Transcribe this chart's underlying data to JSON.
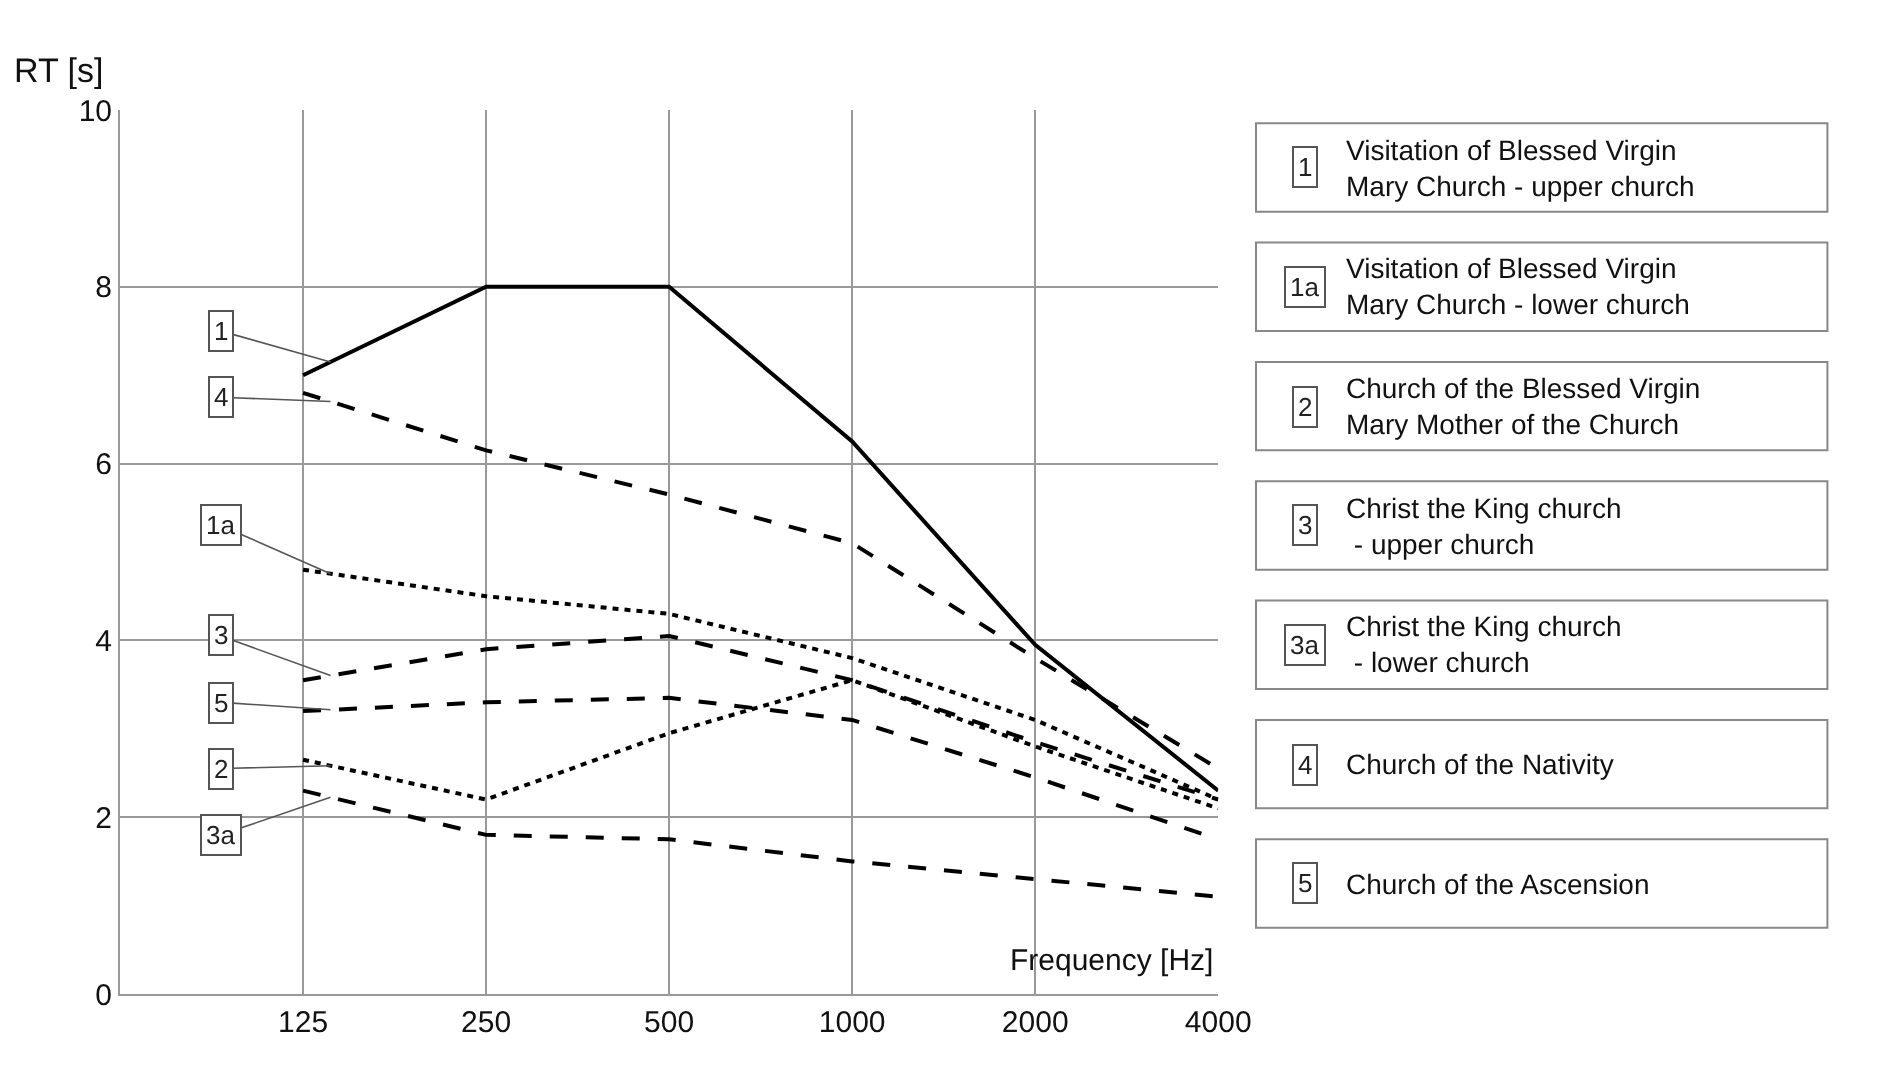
{
  "chart_data": {
    "type": "line",
    "xlabel": "Frequency [Hz]",
    "ylabel": "RT [s]",
    "categories": [
      "125",
      "250",
      "500",
      "1000",
      "2000",
      "4000"
    ],
    "ylim": [
      0,
      10
    ],
    "yticks": [
      0,
      2,
      4,
      6,
      8,
      10
    ],
    "grid": true,
    "legend": false,
    "marker": "none",
    "series": [
      {
        "name": "1",
        "color": "#000000",
        "line_style": "solid",
        "values": [
          7.0,
          8.0,
          8.0,
          6.25,
          3.95,
          2.3
        ]
      },
      {
        "name": "1a",
        "color": "#000000",
        "line_style": "dotted",
        "values": [
          4.8,
          4.5,
          4.3,
          3.8,
          3.1,
          2.2
        ]
      },
      {
        "name": "2",
        "color": "#000000",
        "line_style": "dotted",
        "values": [
          2.65,
          2.2,
          2.95,
          3.55,
          2.8,
          2.1
        ]
      },
      {
        "name": "3",
        "color": "#000000",
        "line_style": "dashed",
        "values": [
          3.55,
          3.9,
          4.05,
          3.55,
          2.85,
          2.2
        ]
      },
      {
        "name": "3a",
        "color": "#000000",
        "line_style": "dashed",
        "values": [
          2.3,
          1.8,
          1.75,
          1.5,
          1.3,
          1.1
        ]
      },
      {
        "name": "4",
        "color": "#000000",
        "line_style": "dashed",
        "values": [
          6.8,
          6.15,
          5.65,
          5.1,
          3.8,
          2.55
        ]
      },
      {
        "name": "5",
        "color": "#000000",
        "line_style": "dashed",
        "values": [
          3.2,
          3.3,
          3.35,
          3.1,
          2.45,
          1.75
        ]
      }
    ],
    "annotations": [
      "Visitation of Blessed Virgin\nMary Church - upper church",
      "Visitation of Blessed Virgin\nMary Church - lower church",
      "Church of the Blessed Virgin\nMary Mother of the Church",
      "Christ the King church\n - upper church",
      "Christ the King church\n - lower church",
      "Church of the Nativity",
      "Church of the Ascension"
    ]
  }
}
